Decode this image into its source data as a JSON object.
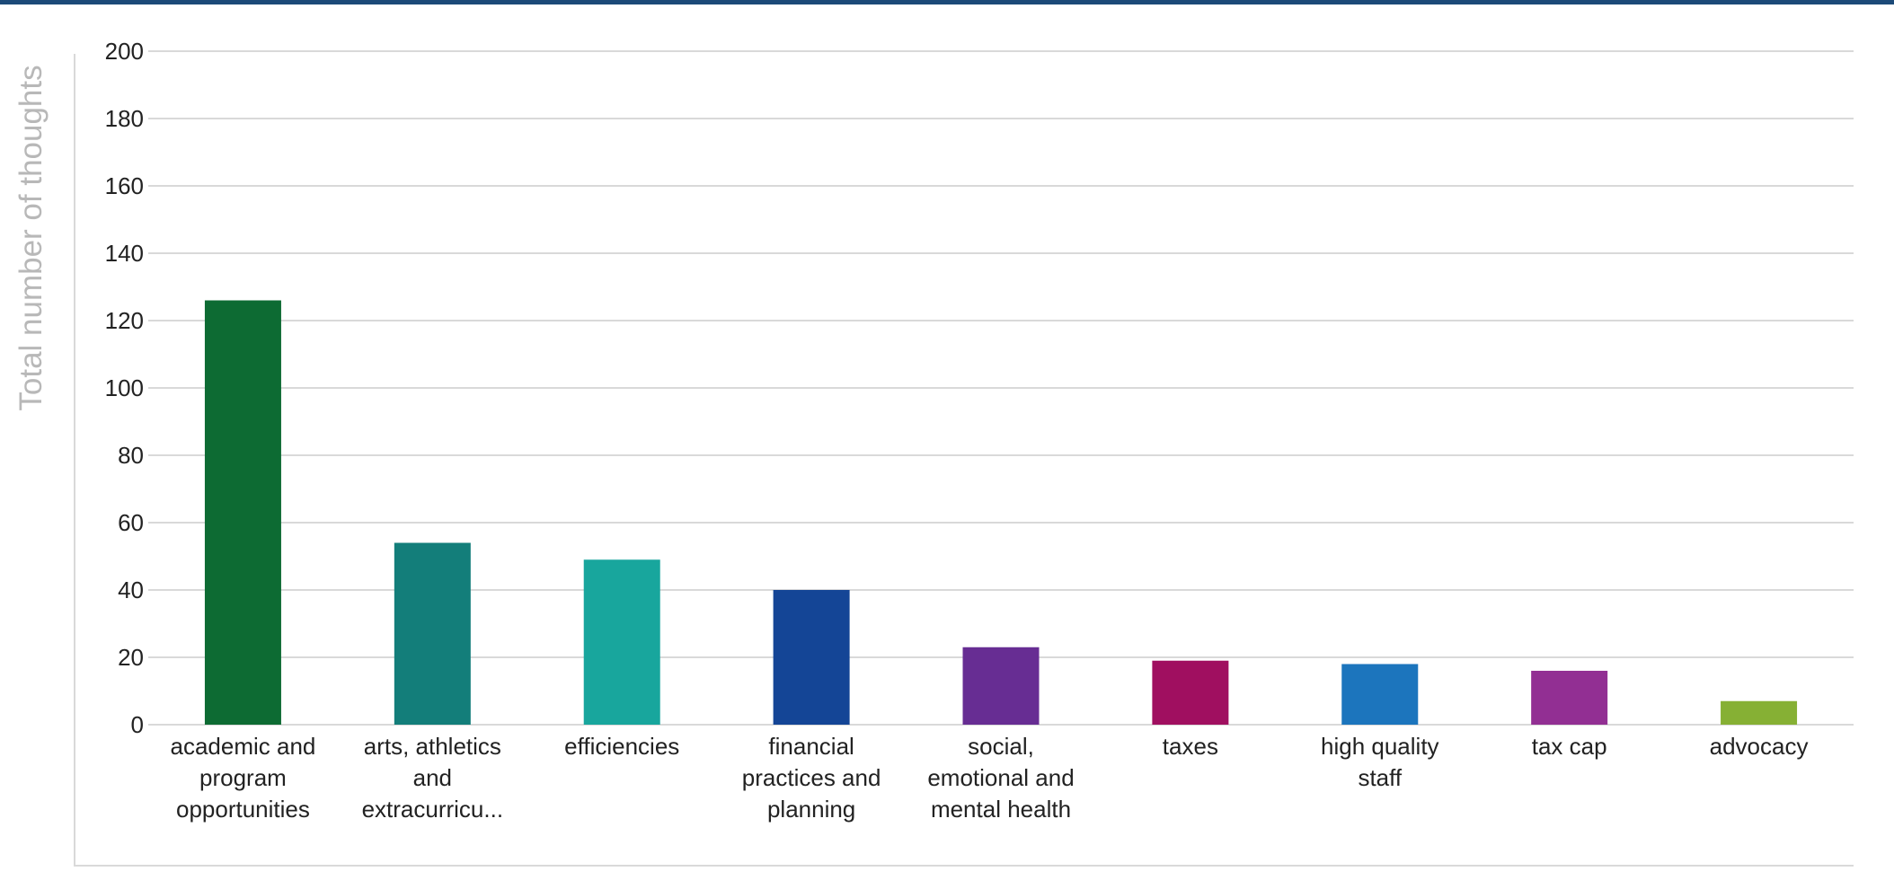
{
  "chart_data": {
    "type": "bar",
    "ylabel": "Total number of thoughts",
    "xlabel": "",
    "ylim": [
      0,
      200
    ],
    "yticks": [
      0,
      20,
      40,
      60,
      80,
      100,
      120,
      140,
      160,
      180,
      200
    ],
    "grid": true,
    "legend": "none",
    "categories": [
      [
        "academic and",
        "program",
        "opportunities"
      ],
      [
        "arts, athletics",
        "and",
        "extracurricu..."
      ],
      [
        "efficiencies"
      ],
      [
        "financial",
        "practices and",
        "planning"
      ],
      [
        "social,",
        "emotional and",
        "mental health"
      ],
      [
        "taxes"
      ],
      [
        "high quality",
        "staff"
      ],
      [
        "tax cap"
      ],
      [
        "advocacy"
      ]
    ],
    "values": [
      126,
      54,
      49,
      40,
      23,
      19,
      18,
      16,
      7
    ],
    "colors": [
      "#0d6b33",
      "#137e7a",
      "#18a69d",
      "#144596",
      "#672d93",
      "#a00f60",
      "#1c75bd",
      "#922f93",
      "#86b034"
    ]
  }
}
